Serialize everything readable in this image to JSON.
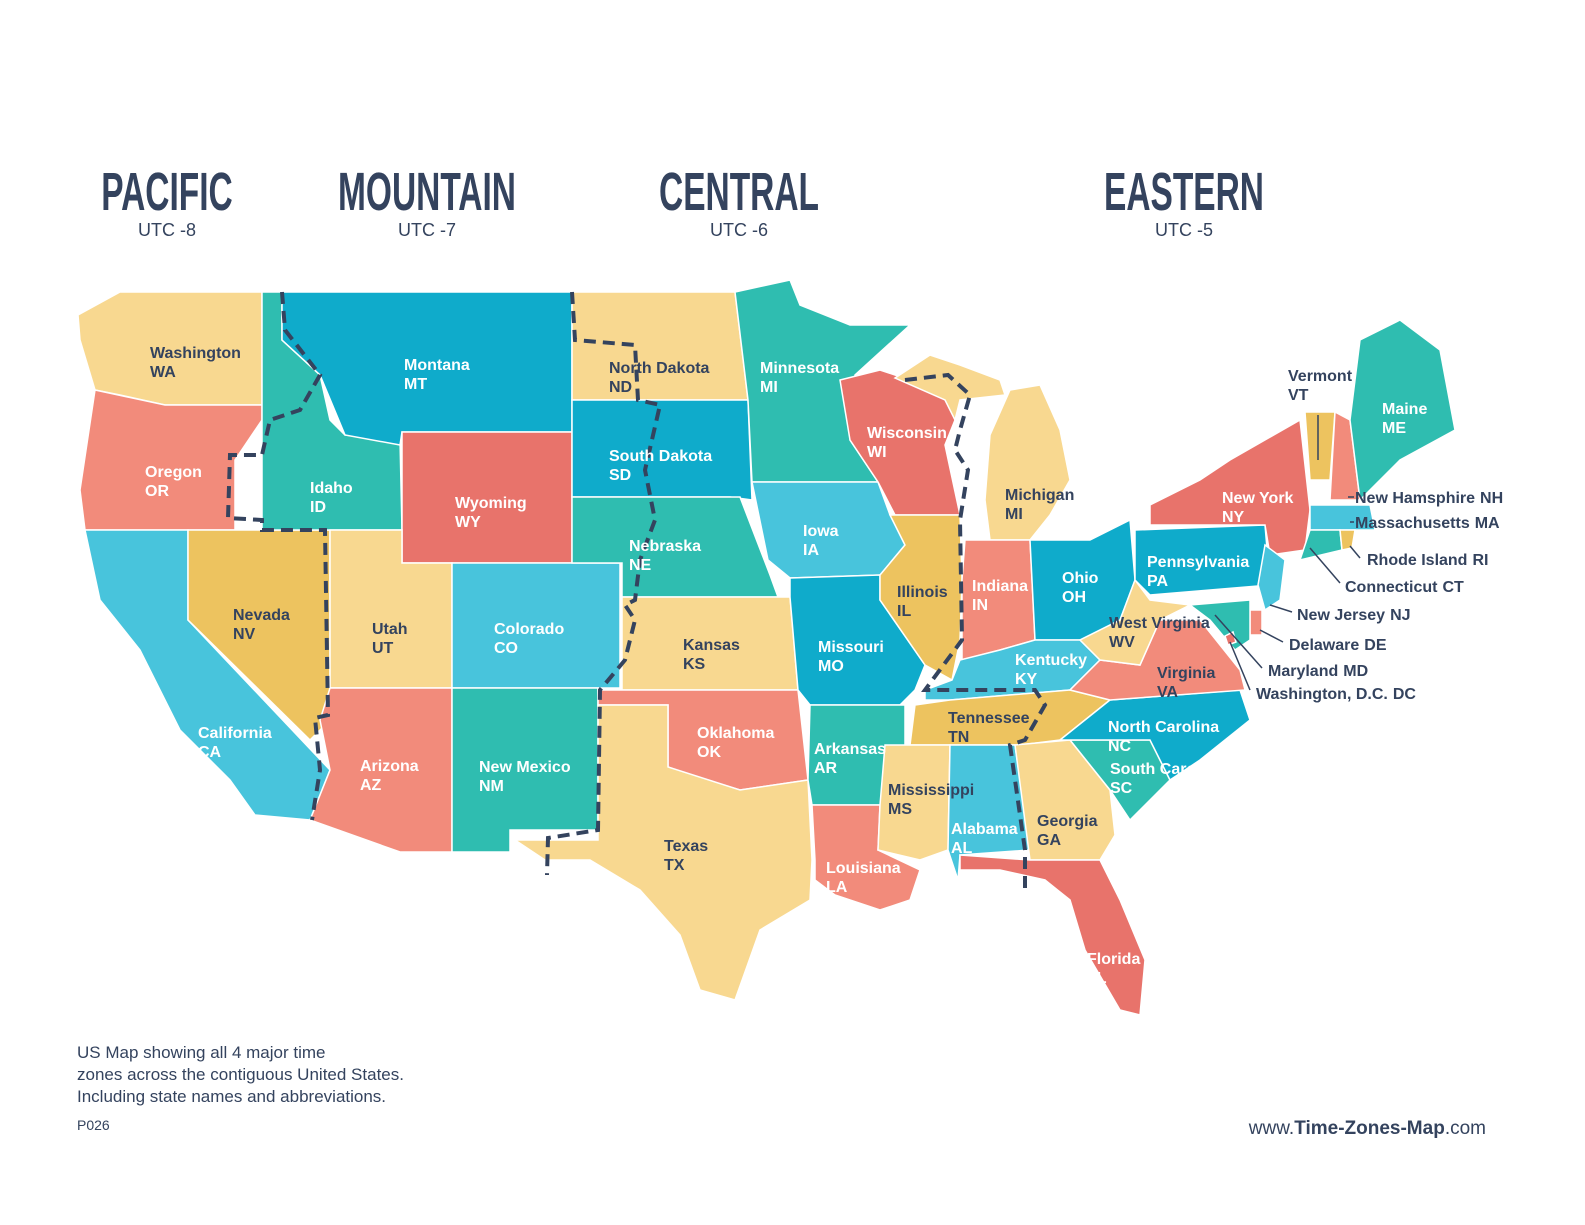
{
  "zones": [
    {
      "name": "PACIFIC",
      "utc": "UTC -8"
    },
    {
      "name": "MOUNTAIN",
      "utc": "UTC -7"
    },
    {
      "name": "CENTRAL",
      "utc": "UTC -6"
    },
    {
      "name": "EASTERN",
      "utc": "UTC -5"
    }
  ],
  "states": [
    {
      "name": "Washington",
      "abbr": "WA"
    },
    {
      "name": "Oregon",
      "abbr": "OR"
    },
    {
      "name": "California",
      "abbr": "CA"
    },
    {
      "name": "Nevada",
      "abbr": "NV"
    },
    {
      "name": "Idaho",
      "abbr": "ID"
    },
    {
      "name": "Montana",
      "abbr": "MT"
    },
    {
      "name": "Wyoming",
      "abbr": "WY"
    },
    {
      "name": "Utah",
      "abbr": "UT"
    },
    {
      "name": "Colorado",
      "abbr": "CO"
    },
    {
      "name": "Arizona",
      "abbr": "AZ"
    },
    {
      "name": "New Mexico",
      "abbr": "NM"
    },
    {
      "name": "North Dakota",
      "abbr": "ND"
    },
    {
      "name": "South Dakota",
      "abbr": "SD"
    },
    {
      "name": "Nebraska",
      "abbr": "NE"
    },
    {
      "name": "Kansas",
      "abbr": "KS"
    },
    {
      "name": "Oklahoma",
      "abbr": "OK"
    },
    {
      "name": "Texas",
      "abbr": "TX"
    },
    {
      "name": "Minnesota",
      "abbr": "MI"
    },
    {
      "name": "Iowa",
      "abbr": "IA"
    },
    {
      "name": "Missouri",
      "abbr": "MO"
    },
    {
      "name": "Arkansas",
      "abbr": "AR"
    },
    {
      "name": "Louisiana",
      "abbr": "LA"
    },
    {
      "name": "Wisconsin",
      "abbr": "WI"
    },
    {
      "name": "Illinois",
      "abbr": "IL"
    },
    {
      "name": "Michigan",
      "abbr": "MI"
    },
    {
      "name": "Indiana",
      "abbr": "IN"
    },
    {
      "name": "Ohio",
      "abbr": "OH"
    },
    {
      "name": "Kentucky",
      "abbr": "KY"
    },
    {
      "name": "Tennessee",
      "abbr": "TN"
    },
    {
      "name": "Mississippi",
      "abbr": "MS"
    },
    {
      "name": "Alabama",
      "abbr": "AL"
    },
    {
      "name": "Georgia",
      "abbr": "GA"
    },
    {
      "name": "Florida",
      "abbr": "FL"
    },
    {
      "name": "South Carolina",
      "abbr": "SC"
    },
    {
      "name": "North Carolina",
      "abbr": "NC"
    },
    {
      "name": "Virginia",
      "abbr": "VA"
    },
    {
      "name": "West Virginia",
      "abbr": "WV"
    },
    {
      "name": "Pennsylvania",
      "abbr": "PA"
    },
    {
      "name": "New York",
      "abbr": "NY"
    },
    {
      "name": "Vermont",
      "abbr": "VT"
    },
    {
      "name": "New Hamsphire",
      "abbr": "NH"
    },
    {
      "name": "Maine",
      "abbr": "ME"
    },
    {
      "name": "Massachusetts",
      "abbr": "MA"
    },
    {
      "name": "Connecticut",
      "abbr": "CT"
    },
    {
      "name": "Rhode Island",
      "abbr": "RI"
    },
    {
      "name": "New Jersey",
      "abbr": "NJ"
    },
    {
      "name": "Delaware",
      "abbr": "DE"
    },
    {
      "name": "Maryland",
      "abbr": "MD"
    },
    {
      "name": "Washington, D.C.",
      "abbr": "DC"
    }
  ],
  "description": [
    "US Map showing all 4 major time",
    "zones across the contiguous United States.",
    "Including state names and abbreviations."
  ],
  "code": "P026",
  "website": [
    "www.",
    "Time-Zones-Map",
    ".com"
  ]
}
